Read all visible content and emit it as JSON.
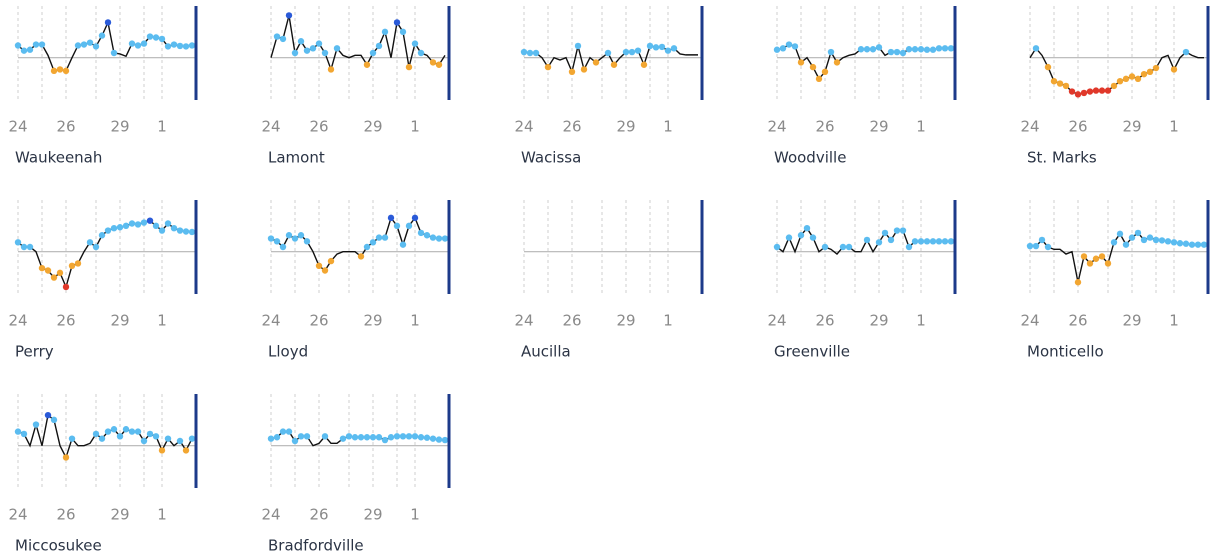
{
  "axes": {
    "ylim": [
      -0.9,
      1.1
    ],
    "xlim": [
      0,
      29.5
    ],
    "xticks": [
      {
        "value": 0,
        "label": "24"
      },
      {
        "value": 8,
        "label": "26"
      },
      {
        "value": 17,
        "label": "29"
      },
      {
        "value": 24,
        "label": "1"
      }
    ],
    "x_minor_ticks": [
      4,
      13,
      21
    ],
    "line_color": "#111111",
    "baseline_color": "#b5b5b5",
    "end_bar_color": "#1c3a8a",
    "dot_colors": [
      {
        "max": -0.68,
        "color": "#e0382a"
      },
      {
        "max": -0.1,
        "color": "#f2a631"
      },
      {
        "min": 0.65,
        "color": "#2a5ad8"
      },
      {
        "min": 0.1,
        "color": "#5bbcf0"
      }
    ]
  },
  "chart_data": [
    {
      "type": "line",
      "title": "Waukeenah",
      "values": [
        0.26,
        0.15,
        0.17,
        0.28,
        0.28,
        0.05,
        -0.28,
        -0.25,
        -0.28,
        0.0,
        0.26,
        0.28,
        0.32,
        0.24,
        0.47,
        0.75,
        0.1,
        0.08,
        0.03,
        0.3,
        0.26,
        0.3,
        0.45,
        0.43,
        0.4,
        0.24,
        0.28,
        0.25,
        0.24,
        0.26
      ]
    },
    {
      "type": "line",
      "title": "Lamont",
      "values": [
        0.0,
        0.45,
        0.4,
        0.9,
        0.1,
        0.35,
        0.15,
        0.2,
        0.3,
        0.1,
        -0.25,
        0.2,
        0.05,
        0.0,
        0.05,
        0.05,
        -0.15,
        0.1,
        0.25,
        0.55,
        0.0,
        0.75,
        0.55,
        -0.2,
        0.3,
        0.1,
        0.05,
        -0.1,
        -0.15,
        0.05
      ]
    },
    {
      "type": "line",
      "title": "Wacissa",
      "values": [
        0.12,
        0.1,
        0.1,
        0.0,
        -0.2,
        0.0,
        -0.05,
        0.0,
        -0.3,
        0.25,
        -0.25,
        0.0,
        -0.1,
        0.0,
        0.1,
        -0.15,
        0.0,
        0.12,
        0.12,
        0.15,
        -0.15,
        0.25,
        0.22,
        0.23,
        0.15,
        0.2,
        0.08,
        0.06,
        0.06,
        0.06
      ]
    },
    {
      "type": "line",
      "title": "Woodville",
      "values": [
        0.17,
        0.2,
        0.28,
        0.24,
        -0.1,
        0.0,
        -0.2,
        -0.45,
        -0.3,
        0.12,
        -0.1,
        0.0,
        0.05,
        0.08,
        0.18,
        0.18,
        0.18,
        0.22,
        0.05,
        0.12,
        0.12,
        0.1,
        0.18,
        0.18,
        0.18,
        0.17,
        0.17,
        0.2,
        0.2,
        0.2
      ]
    },
    {
      "type": "line",
      "title": "St. Marks",
      "values": [
        0.0,
        0.2,
        0.05,
        -0.2,
        -0.5,
        -0.55,
        -0.6,
        -0.72,
        -0.78,
        -0.75,
        -0.72,
        -0.7,
        -0.7,
        -0.7,
        -0.6,
        -0.5,
        -0.45,
        -0.4,
        -0.45,
        -0.35,
        -0.3,
        -0.22,
        0.0,
        0.05,
        -0.25,
        0.0,
        0.12,
        0.05,
        0.0,
        0.0
      ]
    },
    {
      "type": "line",
      "title": "Perry",
      "values": [
        0.2,
        0.1,
        0.1,
        0.0,
        -0.35,
        -0.4,
        -0.55,
        -0.45,
        -0.75,
        -0.3,
        -0.25,
        0.0,
        0.2,
        0.1,
        0.35,
        0.45,
        0.5,
        0.52,
        0.55,
        0.6,
        0.58,
        0.62,
        0.66,
        0.55,
        0.45,
        0.6,
        0.5,
        0.45,
        0.43,
        0.42
      ]
    },
    {
      "type": "line",
      "title": "Lloyd",
      "values": [
        0.28,
        0.22,
        0.1,
        0.35,
        0.28,
        0.35,
        0.22,
        0.0,
        -0.3,
        -0.4,
        -0.2,
        -0.05,
        0.0,
        0.0,
        0.0,
        -0.1,
        0.1,
        0.2,
        0.3,
        0.3,
        0.72,
        0.55,
        0.15,
        0.55,
        0.72,
        0.4,
        0.35,
        0.3,
        0.28,
        0.28
      ]
    },
    {
      "type": "line",
      "title": "Aucilla",
      "values": [
        null,
        null,
        null,
        null,
        null,
        null,
        null,
        null,
        null,
        null,
        null,
        null,
        null,
        null,
        null,
        null,
        null,
        null,
        null,
        null,
        null,
        null,
        null,
        null,
        null,
        null,
        null,
        null,
        null,
        null
      ]
    },
    {
      "type": "line",
      "title": "Greenville",
      "values": [
        0.1,
        0.0,
        0.3,
        0.0,
        0.35,
        0.5,
        0.3,
        0.0,
        0.1,
        0.05,
        -0.05,
        0.1,
        0.1,
        0.0,
        0.0,
        0.25,
        0.0,
        0.2,
        0.4,
        0.25,
        0.45,
        0.45,
        0.1,
        0.22,
        0.22,
        0.22,
        0.22,
        0.22,
        0.22,
        0.22
      ]
    },
    {
      "type": "line",
      "title": "Monticello",
      "values": [
        0.12,
        0.12,
        0.25,
        0.1,
        0.05,
        0.05,
        -0.05,
        0.0,
        -0.65,
        -0.1,
        -0.25,
        -0.15,
        -0.1,
        -0.25,
        0.2,
        0.38,
        0.15,
        0.3,
        0.4,
        0.25,
        0.3,
        0.25,
        0.24,
        0.22,
        0.2,
        0.18,
        0.17,
        0.15,
        0.15,
        0.15
      ]
    },
    {
      "type": "line",
      "title": "Miccosukee",
      "values": [
        0.3,
        0.25,
        0.0,
        0.45,
        0.0,
        0.65,
        0.55,
        0.0,
        -0.25,
        0.15,
        0.0,
        0.0,
        0.05,
        0.25,
        0.15,
        0.3,
        0.35,
        0.2,
        0.35,
        0.3,
        0.3,
        0.1,
        0.25,
        0.2,
        -0.1,
        0.15,
        0.0,
        0.1,
        -0.1,
        0.15
      ]
    },
    {
      "type": "line",
      "title": "Bradfordville",
      "values": [
        0.15,
        0.18,
        0.3,
        0.3,
        0.1,
        0.2,
        0.2,
        0.0,
        0.05,
        0.2,
        0.05,
        0.05,
        0.15,
        0.2,
        0.18,
        0.18,
        0.18,
        0.18,
        0.18,
        0.12,
        0.18,
        0.2,
        0.2,
        0.2,
        0.2,
        0.18,
        0.17,
        0.15,
        0.13,
        0.12
      ]
    }
  ]
}
